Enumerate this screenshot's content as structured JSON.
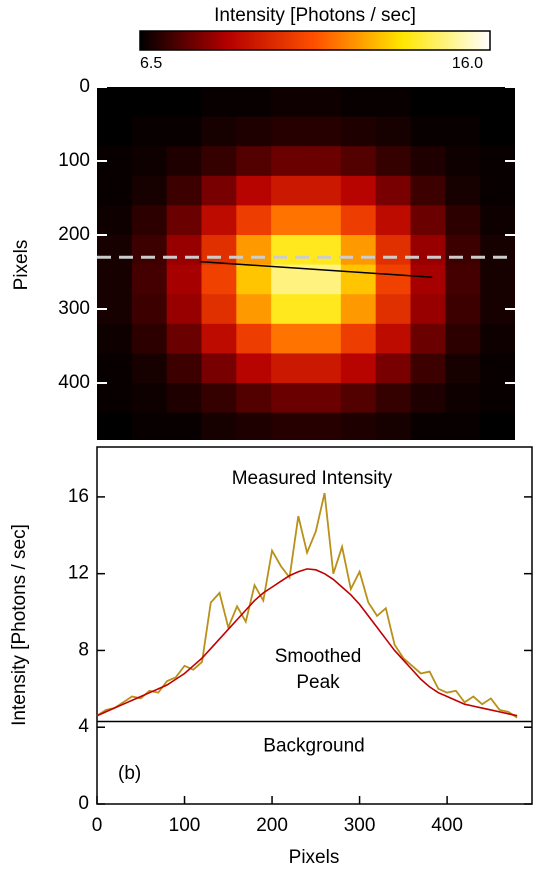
{
  "chart_data": [
    {
      "type": "heatmap",
      "colorbar_title": "Intensity [Photons / sec]",
      "colorbar_range": [
        6.5,
        {
          "value": 16,
          "label": "16.0"
        }
      ],
      "colormap": [
        "#000000",
        "#b40000",
        "#ff5000",
        "#ffe600",
        "#ffffff"
      ],
      "y_label": "Pixels",
      "xlim": [
        0,
        480
      ],
      "ylim": [
        0,
        477
      ],
      "yticks": [
        0,
        100,
        200,
        300,
        400
      ],
      "x_edges": [
        0,
        40,
        80,
        120,
        160,
        200,
        240,
        280,
        320,
        360,
        400,
        440,
        480
      ],
      "y_edges": [
        0,
        40,
        80,
        120,
        160,
        200,
        240,
        280,
        320,
        360,
        400,
        440,
        480
      ],
      "z": [
        [
          6.5,
          6.5,
          6.5,
          6.6,
          6.6,
          6.7,
          6.7,
          6.6,
          6.6,
          6.5,
          6.5,
          6.5
        ],
        [
          6.5,
          6.6,
          6.6,
          6.8,
          6.9,
          7.0,
          7.0,
          6.9,
          6.8,
          6.6,
          6.6,
          6.5
        ],
        [
          6.6,
          6.7,
          6.9,
          7.2,
          7.6,
          7.9,
          7.9,
          7.6,
          7.2,
          6.9,
          6.7,
          6.6
        ],
        [
          6.6,
          6.8,
          7.3,
          8.1,
          9.0,
          9.6,
          9.6,
          9.0,
          8.1,
          7.3,
          6.8,
          6.6
        ],
        [
          6.7,
          7.1,
          7.9,
          9.2,
          10.7,
          11.8,
          11.8,
          10.7,
          9.2,
          7.9,
          7.1,
          6.7
        ],
        [
          6.8,
          7.3,
          8.5,
          10.3,
          12.4,
          13.9,
          13.9,
          12.4,
          10.3,
          8.5,
          7.3,
          6.8
        ],
        [
          6.8,
          7.4,
          8.7,
          10.8,
          13.1,
          14.8,
          14.8,
          13.1,
          10.8,
          8.7,
          7.4,
          6.8
        ],
        [
          6.8,
          7.3,
          8.5,
          10.3,
          12.4,
          13.9,
          13.9,
          12.4,
          10.3,
          8.5,
          7.3,
          6.8
        ],
        [
          6.7,
          7.1,
          7.9,
          9.2,
          10.7,
          11.8,
          11.8,
          10.7,
          9.2,
          7.9,
          7.1,
          6.7
        ],
        [
          6.6,
          6.8,
          7.3,
          8.1,
          9.0,
          9.6,
          9.6,
          9.0,
          8.1,
          7.3,
          6.8,
          6.6
        ],
        [
          6.6,
          6.7,
          6.9,
          7.2,
          7.6,
          7.9,
          7.9,
          7.6,
          7.2,
          6.9,
          6.7,
          6.6
        ],
        [
          6.5,
          6.6,
          6.6,
          6.8,
          6.9,
          7.0,
          7.0,
          6.9,
          6.8,
          6.6,
          6.6,
          6.5
        ]
      ],
      "dashed_line_y": 230,
      "cut_line": {
        "x": [
          118,
          385
        ],
        "y": [
          236,
          257
        ]
      }
    },
    {
      "type": "line",
      "x_label": "Pixels",
      "y_label": "Intensity [Photons / sec]",
      "xlim": [
        0,
        497
      ],
      "ylim": [
        0,
        18.6
      ],
      "xticks": [
        0,
        100,
        200,
        300,
        400
      ],
      "yticks": [
        0,
        4,
        8,
        12,
        16
      ],
      "x": [
        0,
        10,
        20,
        30,
        40,
        50,
        60,
        70,
        80,
        90,
        100,
        110,
        120,
        130,
        140,
        150,
        160,
        170,
        180,
        190,
        200,
        210,
        220,
        230,
        240,
        250,
        260,
        270,
        280,
        290,
        300,
        310,
        320,
        330,
        340,
        350,
        360,
        370,
        380,
        390,
        400,
        410,
        420,
        430,
        440,
        450,
        460,
        470,
        480
      ],
      "series": [
        {
          "name": "Measured Intensity",
          "color": "#b8901a",
          "values": [
            4.6,
            4.9,
            5.0,
            5.3,
            5.6,
            5.5,
            5.9,
            5.8,
            6.4,
            6.6,
            7.2,
            7.0,
            7.4,
            10.5,
            11.0,
            9.2,
            10.3,
            9.5,
            11.4,
            10.6,
            13.2,
            12.4,
            11.8,
            15.0,
            13.1,
            14.2,
            16.2,
            12.0,
            13.4,
            11.2,
            12.1,
            10.5,
            9.8,
            10.2,
            8.3,
            7.6,
            7.2,
            6.8,
            6.9,
            6.0,
            5.8,
            5.9,
            5.3,
            5.6,
            5.2,
            5.5,
            4.9,
            4.8,
            4.5
          ]
        },
        {
          "name": "Smoothed Peak",
          "color": "#c00000",
          "values": [
            4.6,
            4.8,
            5.0,
            5.2,
            5.4,
            5.6,
            5.8,
            6.0,
            6.2,
            6.5,
            6.8,
            7.2,
            7.6,
            8.1,
            8.6,
            9.1,
            9.6,
            10.1,
            10.6,
            11.0,
            11.3,
            11.6,
            11.9,
            12.1,
            12.25,
            12.2,
            12.0,
            11.7,
            11.3,
            10.9,
            10.4,
            9.8,
            9.2,
            8.6,
            8.0,
            7.5,
            7.0,
            6.5,
            6.1,
            5.8,
            5.6,
            5.4,
            5.2,
            5.1,
            5.0,
            4.9,
            4.8,
            4.7,
            4.6
          ]
        }
      ],
      "background": {
        "value": 4.3,
        "label": "Background"
      },
      "annotations": {
        "measured": "Measured Intensity",
        "smoothed": [
          "Smoothed",
          "Peak"
        ],
        "panel": "(b)"
      }
    }
  ]
}
